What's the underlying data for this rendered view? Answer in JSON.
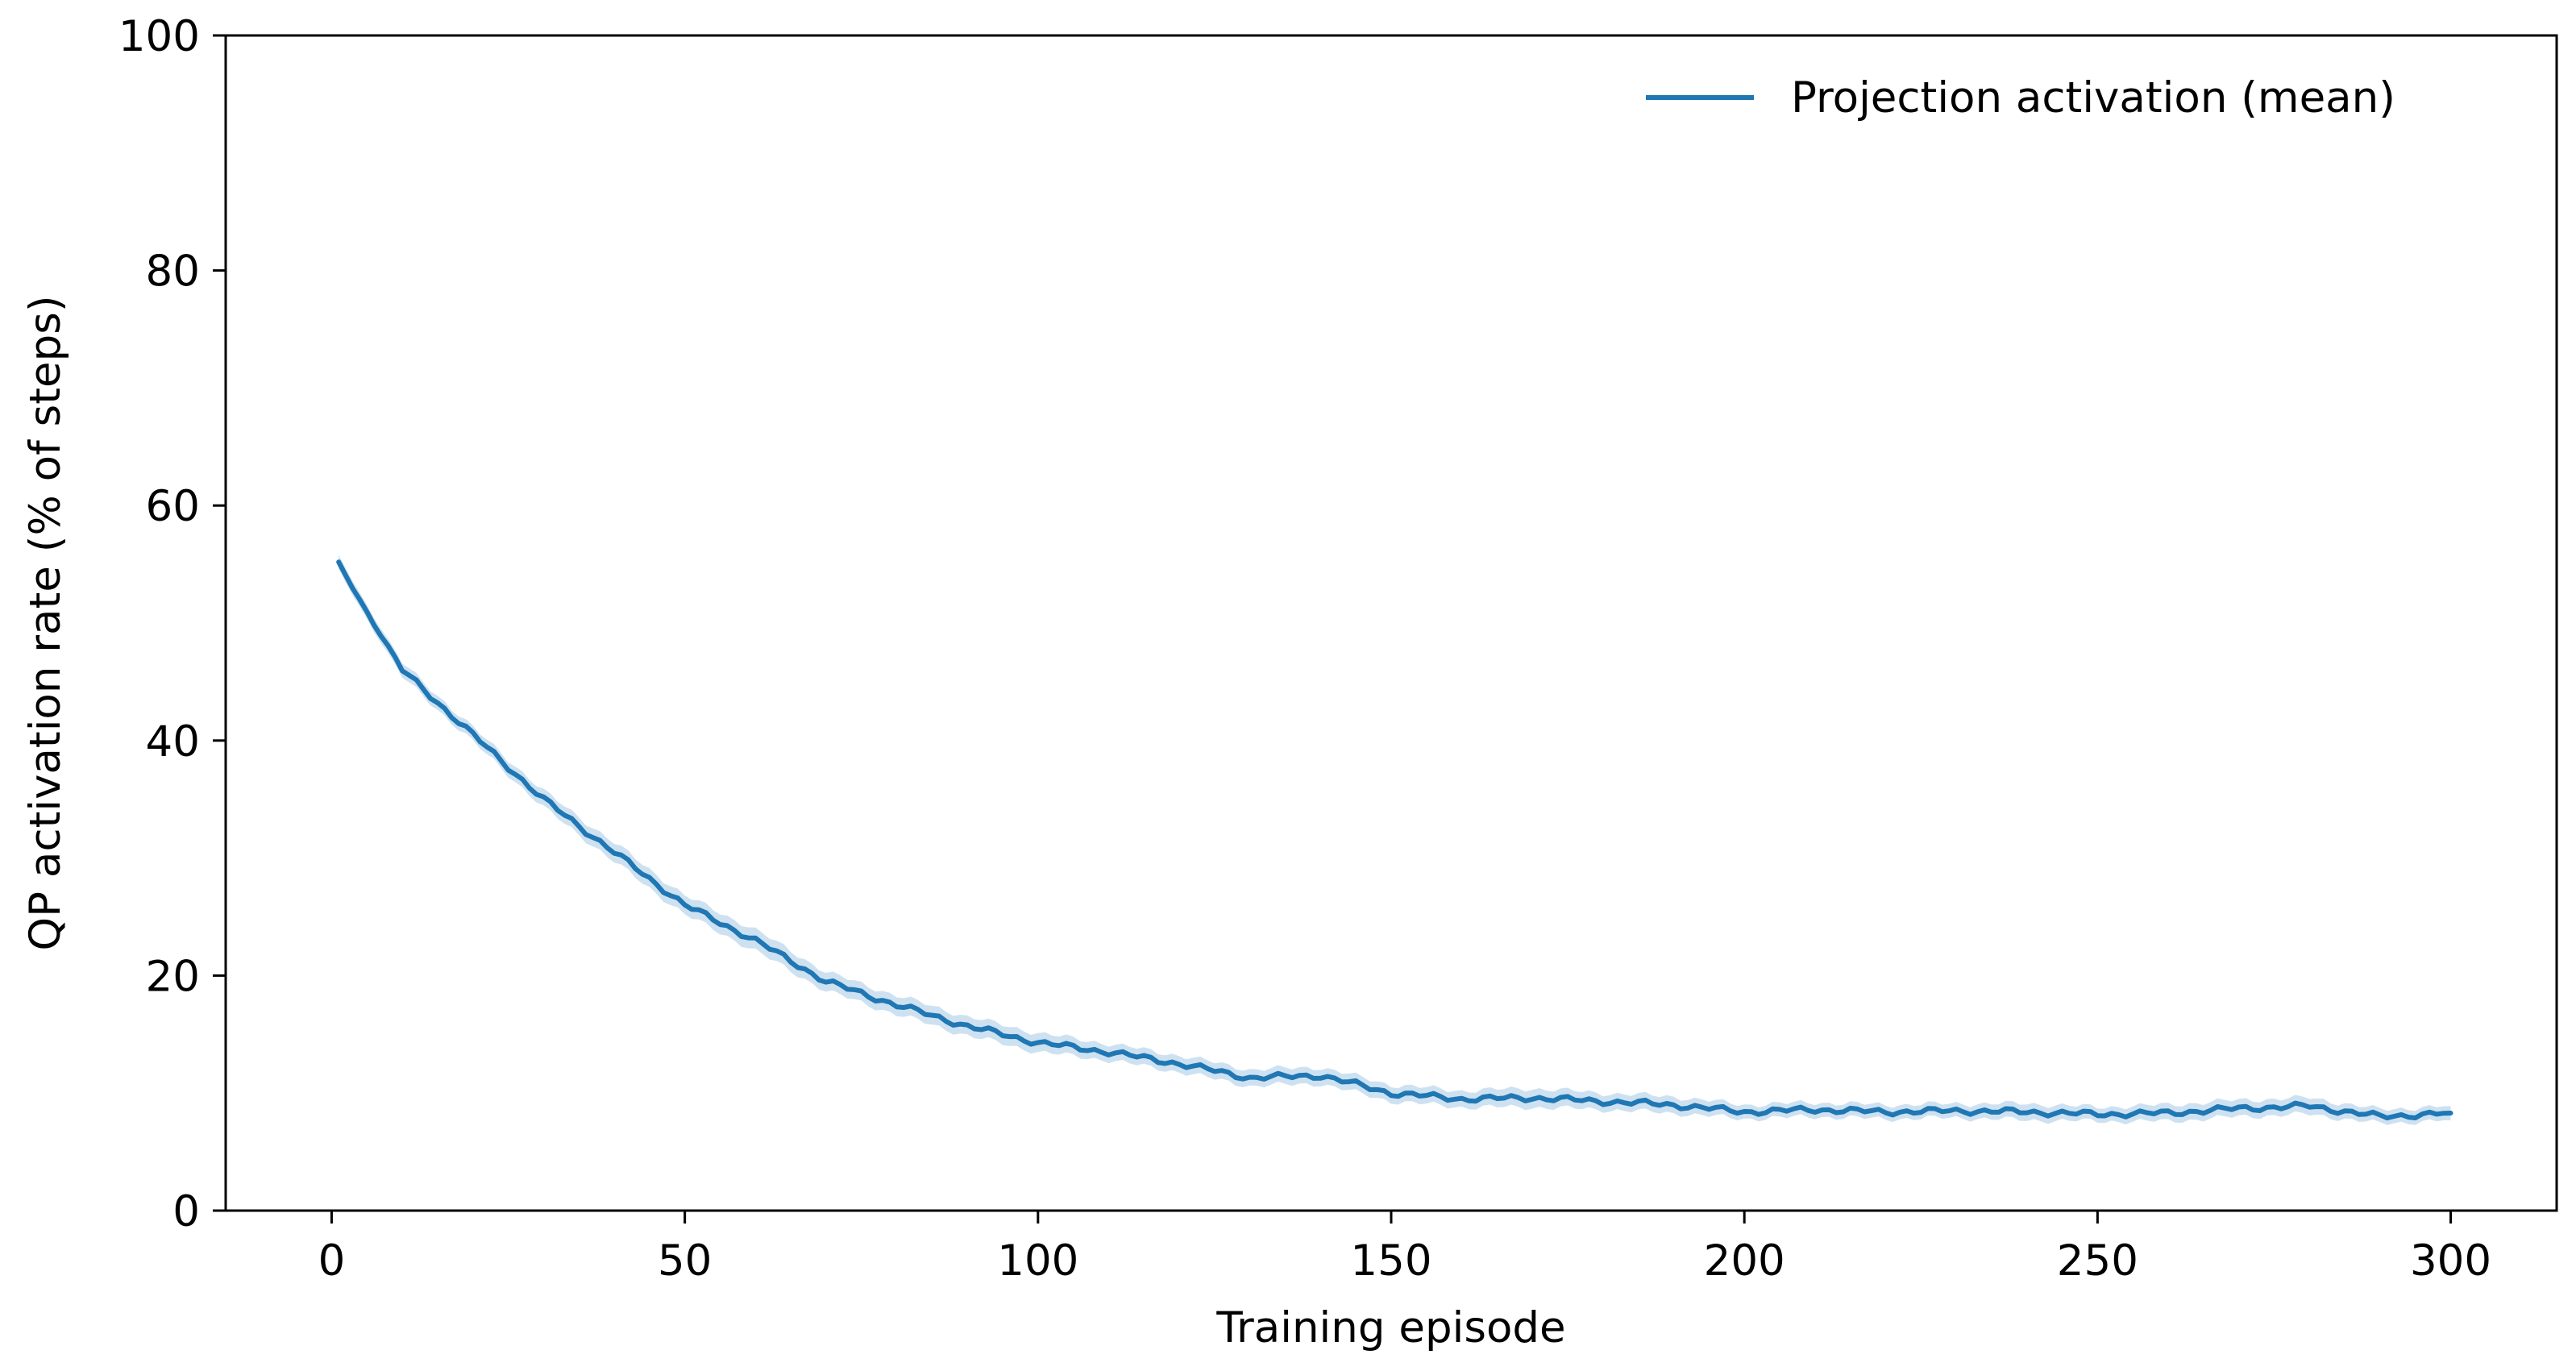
{
  "chart_data": {
    "type": "line",
    "title": "",
    "xlabel": "Training episode",
    "ylabel": "QP activation rate (% of steps)",
    "xlim": [
      -15,
      315
    ],
    "ylim": [
      0,
      100
    ],
    "xticks": [
      0,
      50,
      100,
      150,
      200,
      250,
      300
    ],
    "yticks": [
      0,
      20,
      40,
      60,
      80,
      100
    ],
    "grid": false,
    "legend": {
      "position": "top-right"
    },
    "colors": {
      "line": "#1f77b4",
      "band": "#a6c8e6",
      "axes": "#000000"
    },
    "series": [
      {
        "name": "Projection activation (mean)",
        "x": [
          1,
          10,
          20,
          30,
          40,
          50,
          60,
          70,
          80,
          90,
          100,
          110,
          120,
          130,
          140,
          150,
          160,
          170,
          180,
          190,
          200,
          210,
          220,
          230,
          240,
          250,
          260,
          270,
          280,
          290,
          300
        ],
        "y": [
          55.0,
          46.0,
          40.5,
          35.0,
          30.5,
          26.0,
          23.0,
          19.5,
          17.5,
          15.7,
          14.3,
          13.5,
          12.5,
          11.3,
          11.5,
          10.0,
          9.5,
          9.6,
          9.3,
          9.0,
          8.4,
          8.6,
          8.4,
          8.5,
          8.4,
          8.2,
          8.3,
          8.7,
          8.9,
          8.0,
          8.3
        ],
        "band": [
          0.6,
          0.6,
          0.6,
          0.7,
          0.8,
          0.8,
          0.9,
          0.8,
          0.8,
          0.8,
          0.8,
          0.7,
          0.7,
          0.7,
          0.7,
          0.7,
          0.7,
          0.8,
          0.7,
          0.7,
          0.6,
          0.6,
          0.6,
          0.6,
          0.7,
          0.6,
          0.7,
          0.7,
          0.7,
          0.6,
          0.6
        ]
      }
    ]
  }
}
